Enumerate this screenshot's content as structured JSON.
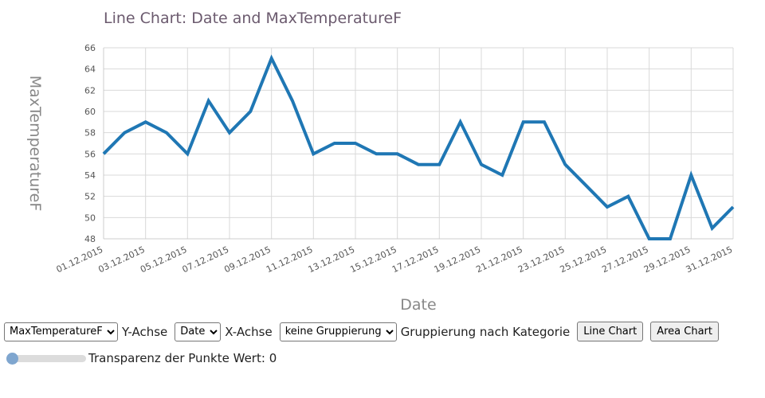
{
  "chart_data": {
    "type": "line",
    "title": "Line Chart: Date and MaxTemperatureF",
    "xlabel": "Date",
    "ylabel": "MaxTemperatureF",
    "x": [
      "01.12.2015",
      "02.12.2015",
      "03.12.2015",
      "04.12.2015",
      "05.12.2015",
      "06.12.2015",
      "07.12.2015",
      "08.12.2015",
      "09.12.2015",
      "10.12.2015",
      "11.12.2015",
      "12.12.2015",
      "13.12.2015",
      "14.12.2015",
      "15.12.2015",
      "16.12.2015",
      "17.12.2015",
      "18.12.2015",
      "19.12.2015",
      "20.12.2015",
      "21.12.2015",
      "22.12.2015",
      "23.12.2015",
      "24.12.2015",
      "25.12.2015",
      "26.12.2015",
      "27.12.2015",
      "28.12.2015",
      "29.12.2015",
      "30.12.2015",
      "31.12.2015"
    ],
    "x_tick_labels": [
      "01.12.2015",
      "03.12.2015",
      "05.12.2015",
      "07.12.2015",
      "09.12.2015",
      "11.12.2015",
      "13.12.2015",
      "15.12.2015",
      "17.12.2015",
      "19.12.2015",
      "21.12.2015",
      "23.12.2015",
      "25.12.2015",
      "27.12.2015",
      "29.12.2015",
      "31.12.2015"
    ],
    "y_ticks": [
      48,
      50,
      52,
      54,
      56,
      58,
      60,
      62,
      64,
      66
    ],
    "series": [
      {
        "values": [
          56,
          58,
          59,
          58,
          56,
          61,
          58,
          60,
          65,
          61,
          56,
          57,
          57,
          56,
          56,
          55,
          55,
          59,
          55,
          54,
          59,
          59,
          55,
          53,
          51,
          52,
          48,
          48,
          54,
          49,
          51
        ]
      }
    ],
    "ylim": [
      48,
      66
    ],
    "grid": true,
    "legend": "none",
    "line_color": "#1f77b4"
  },
  "controls": {
    "y_select": {
      "value": "MaxTemperatureF",
      "label": "Y-Achse"
    },
    "x_select": {
      "value": "Date",
      "label": "X-Achse"
    },
    "group_select": {
      "value": "keine Gruppierung",
      "label": "Gruppierung nach Kategorie"
    },
    "line_chart_button": "Line Chart",
    "area_chart_button": "Area Chart",
    "transparency_label": "Transparenz der Punkte Wert:",
    "transparency_value": "0"
  }
}
